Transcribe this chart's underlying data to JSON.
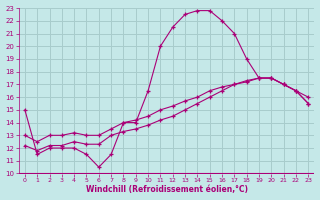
{
  "xlabel": "Windchill (Refroidissement éolien,°C)",
  "background_color": "#c5e8e8",
  "grid_color": "#a8cccc",
  "line_color": "#aa0077",
  "xlim": [
    -0.5,
    23.5
  ],
  "ylim": [
    10,
    23
  ],
  "xticks": [
    0,
    1,
    2,
    3,
    4,
    5,
    6,
    7,
    8,
    9,
    10,
    11,
    12,
    13,
    14,
    15,
    16,
    17,
    18,
    19,
    20,
    21,
    22,
    23
  ],
  "yticks": [
    10,
    11,
    12,
    13,
    14,
    15,
    16,
    17,
    18,
    19,
    20,
    21,
    22,
    23
  ],
  "line1_x": [
    0,
    1,
    2,
    3,
    4,
    5,
    6,
    7,
    8,
    9,
    10,
    11,
    12,
    13,
    14,
    15,
    16,
    17,
    18,
    19,
    20,
    21,
    22,
    23
  ],
  "line1_y": [
    15,
    11.5,
    12,
    12,
    12,
    11.5,
    10.5,
    11.5,
    14.0,
    14.0,
    16.5,
    20.0,
    21.5,
    22.5,
    22.8,
    22.8,
    22.0,
    21.0,
    19.0,
    17.5,
    17.5,
    17.0,
    16.5,
    16.0
  ],
  "line2_x": [
    0,
    1,
    2,
    3,
    4,
    5,
    6,
    7,
    8,
    9,
    10,
    11,
    12,
    13,
    14,
    15,
    16,
    17,
    18,
    19,
    20,
    21,
    22,
    23
  ],
  "line2_y": [
    12.2,
    11.8,
    12.2,
    12.2,
    12.5,
    12.3,
    12.3,
    13.0,
    13.3,
    13.5,
    13.8,
    14.2,
    14.5,
    15.0,
    15.5,
    16.0,
    16.5,
    17.0,
    17.2,
    17.5,
    17.5,
    17.0,
    16.5,
    15.5
  ],
  "line3_x": [
    0,
    1,
    2,
    3,
    4,
    5,
    6,
    7,
    8,
    9,
    10,
    11,
    12,
    13,
    14,
    15,
    16,
    17,
    18,
    19,
    20,
    21,
    22,
    23
  ],
  "line3_y": [
    13.0,
    12.5,
    13.0,
    13.0,
    13.2,
    13.0,
    13.0,
    13.5,
    14.0,
    14.2,
    14.5,
    15.0,
    15.3,
    15.7,
    16.0,
    16.5,
    16.8,
    17.0,
    17.3,
    17.5,
    17.5,
    17.0,
    16.5,
    15.5
  ]
}
